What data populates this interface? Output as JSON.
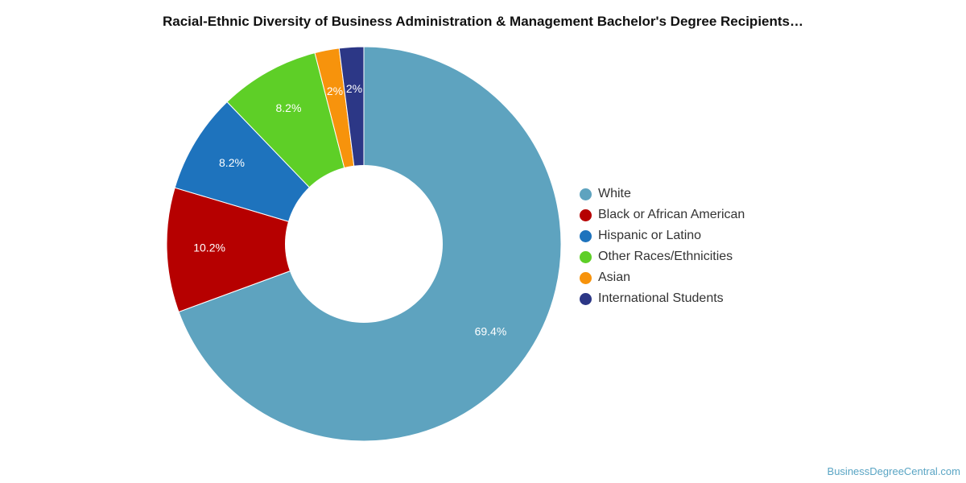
{
  "chart_data": {
    "type": "pie",
    "title": "Racial-Ethnic Diversity of Business Administration & Management Bachelor's Degree Recipients…",
    "slices": [
      {
        "label": "White",
        "value": 69.4,
        "value_label": "69.4%",
        "color": "#5ea3bf"
      },
      {
        "label": "Black or African American",
        "value": 10.2,
        "value_label": "10.2%",
        "color": "#b60000"
      },
      {
        "label": "Hispanic or Latino",
        "value": 8.2,
        "value_label": "8.2%",
        "color": "#1e73bd"
      },
      {
        "label": "Other Races/Ethnicities",
        "value": 8.2,
        "value_label": "8.2%",
        "color": "#5ecf27"
      },
      {
        "label": "Asian",
        "value": 2,
        "value_label": "2%",
        "color": "#f7930c"
      },
      {
        "label": "International Students",
        "value": 2,
        "value_label": "2%",
        "color": "#2c3786"
      }
    ],
    "donut": true,
    "legend_position": "right"
  },
  "source": "BusinessDegreeCentral.com"
}
